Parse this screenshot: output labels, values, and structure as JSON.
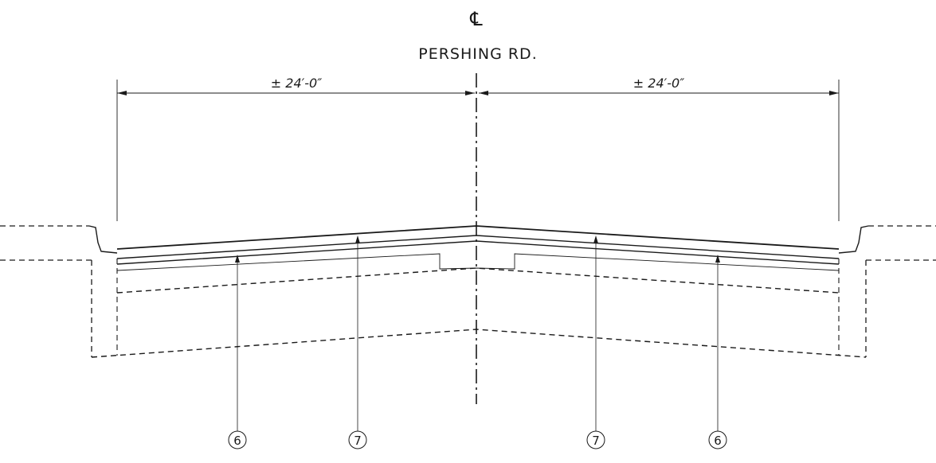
{
  "centerline": {
    "symbol": "℄",
    "road_name": "PERSHING RD."
  },
  "dimensions": {
    "left": "± 24′-0″",
    "right": "± 24′-0″"
  },
  "callouts": [
    {
      "number": "6"
    },
    {
      "number": "7"
    },
    {
      "number": "7"
    },
    {
      "number": "6"
    }
  ]
}
